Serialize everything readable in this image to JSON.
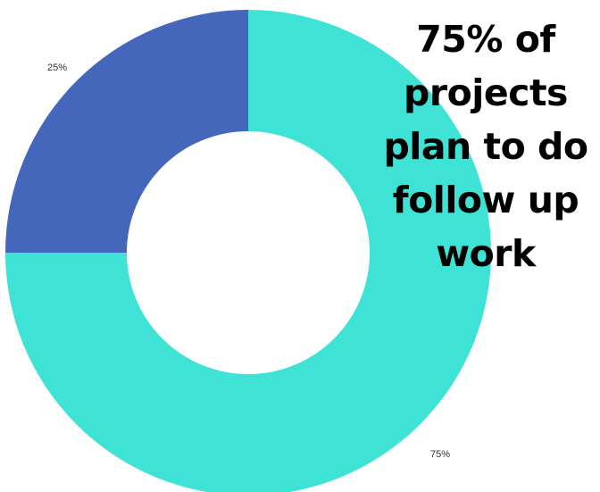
{
  "headline": {
    "line1": "75% of",
    "line2": "projects",
    "line3": "plan to do",
    "line4": "follow up",
    "line5": "work"
  },
  "chart_data": {
    "type": "pie",
    "variant": "donut",
    "slices": [
      {
        "label": "75%",
        "value": 75,
        "color": "#3ee3d6"
      },
      {
        "label": "25%",
        "value": 25,
        "color": "#4467bb"
      }
    ],
    "start": "12 o'clock",
    "direction": "clockwise",
    "legend": "none"
  }
}
